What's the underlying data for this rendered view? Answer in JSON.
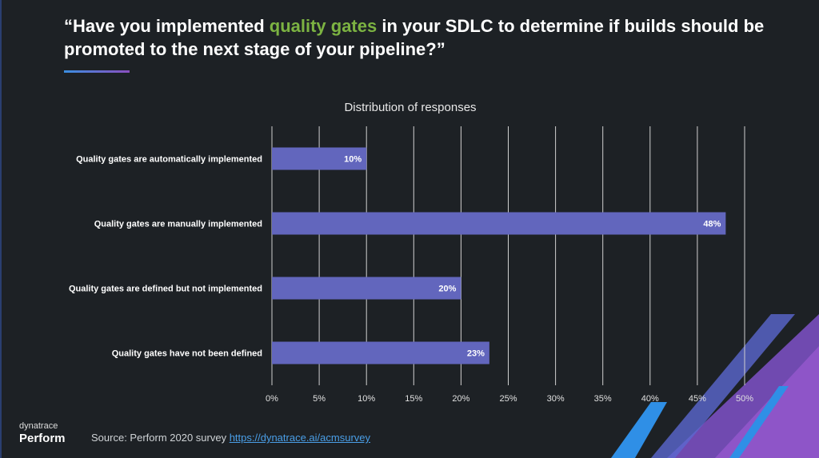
{
  "slide": {
    "title_before": "“Have you implemented ",
    "title_highlight": "quality gates",
    "title_after": " in your SDLC to determine if builds should be promoted to the next stage of your pipeline?”",
    "highlight_color": "#7cb342"
  },
  "chart_data": {
    "type": "bar",
    "orientation": "horizontal",
    "title": "Distribution of responses",
    "categories": [
      "Quality gates are automatically implemented",
      "Quality gates are manually implemented",
      "Quality gates are defined but not implemented",
      "Quality gates have not been defined"
    ],
    "values": [
      10,
      48,
      20,
      23
    ],
    "data_labels": [
      "10%",
      "48%",
      "20%",
      "23%"
    ],
    "xlim": [
      0,
      50
    ],
    "x_ticks": [
      "0%",
      "5%",
      "10%",
      "15%",
      "20%",
      "25%",
      "30%",
      "35%",
      "40%",
      "45%",
      "50%"
    ],
    "grid": "vertical",
    "bar_color": "#6266bd"
  },
  "footer": {
    "brand_small": "dynatrace",
    "brand_big": "Perform",
    "source_label": "Source: Perform 2020 survey ",
    "source_link": "https://dynatrace.ai/acmsurvey"
  }
}
